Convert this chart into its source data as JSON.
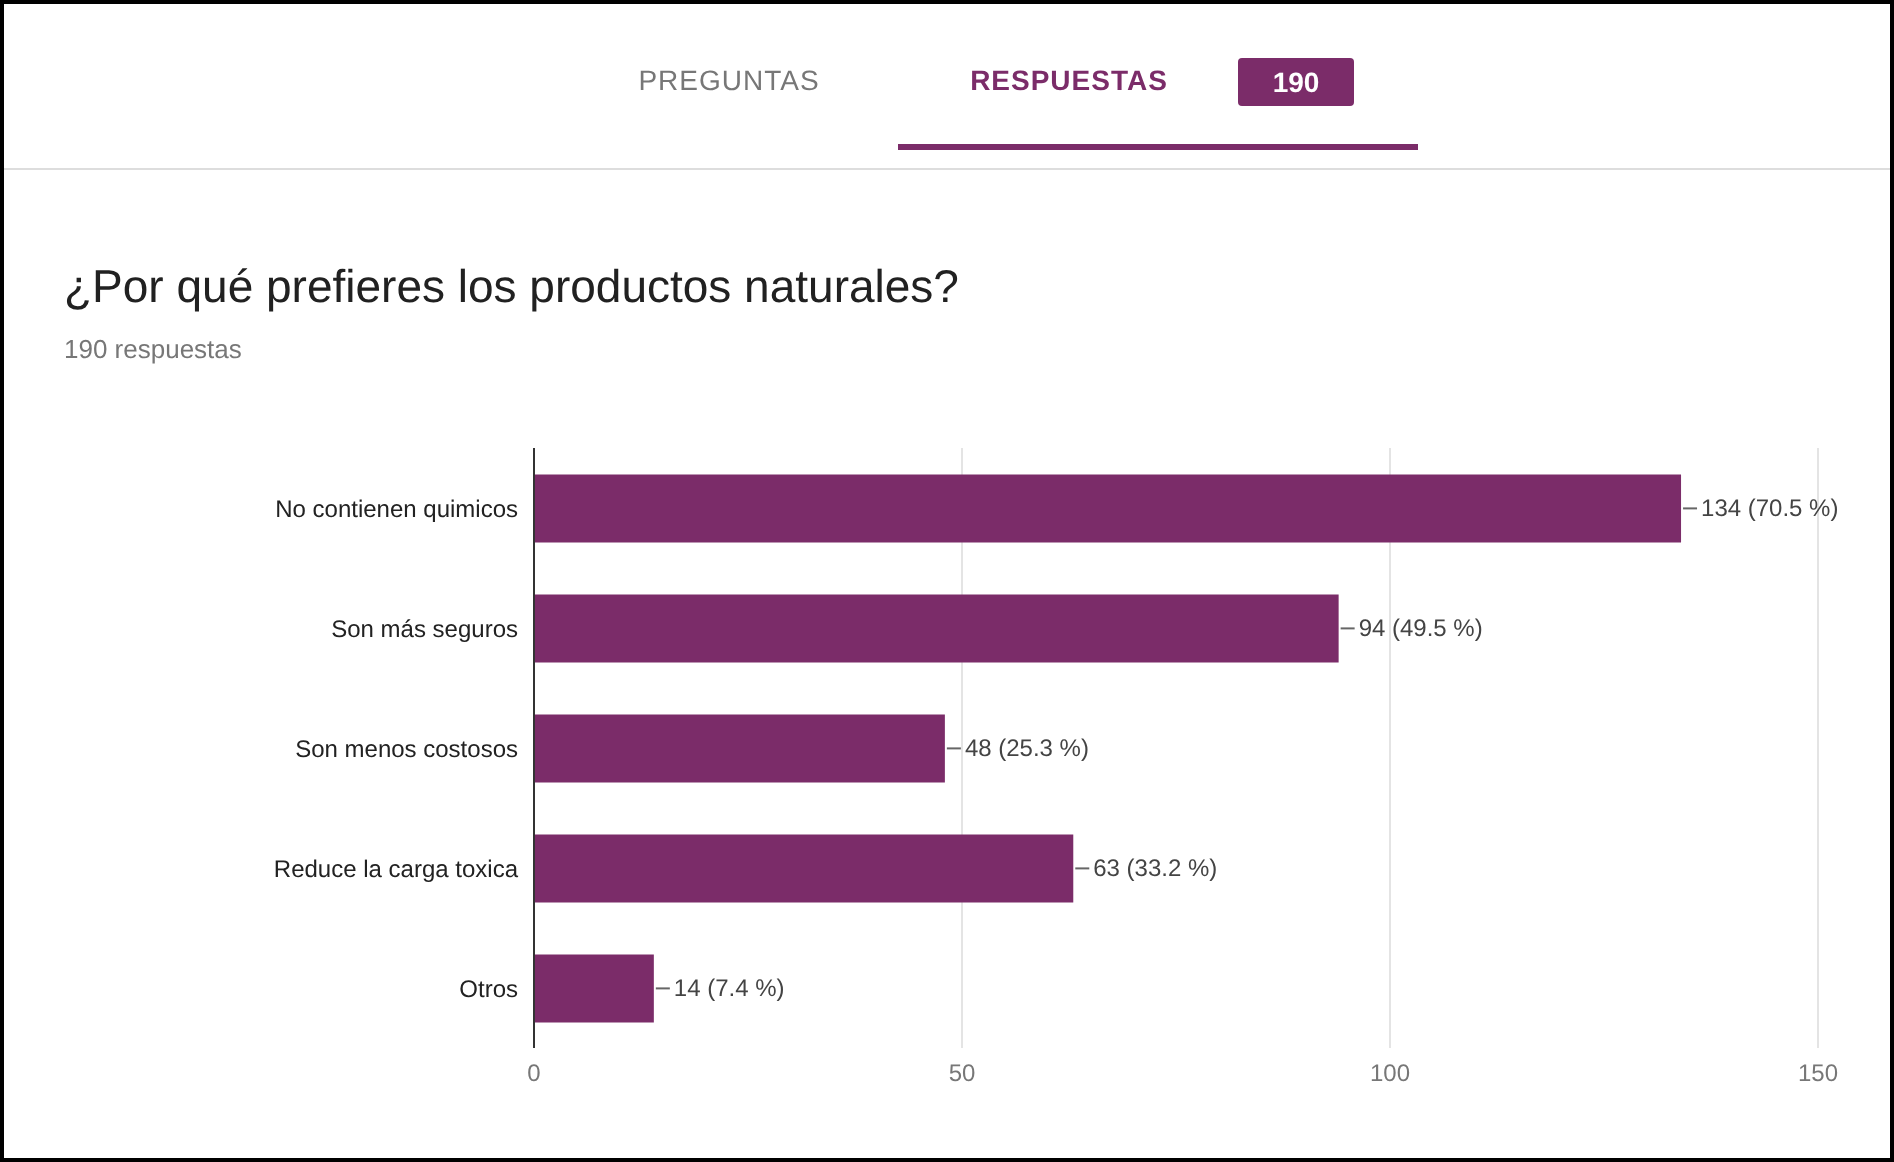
{
  "chart_data": {
    "type": "bar",
    "orientation": "horizontal",
    "title": "¿Por qué prefieres los productos naturales?",
    "subtitle": "190 respuestas",
    "annotations": [
      "PREGUNTAS",
      "RESPUESTAS",
      "190"
    ],
    "categories": [
      "No contienen quimicos",
      "Son más seguros",
      "Son menos costosos",
      "Reduce la carga toxica",
      "Otros"
    ],
    "values": [
      134,
      94,
      48,
      63,
      14
    ],
    "value_labels": [
      "134 (70.5 %)",
      "94 (49.5 %)",
      "48 (25.3 %)",
      "63 (33.2 %)",
      "14 (7.4 %)"
    ],
    "color": "#7b2c69",
    "xlim": [
      0,
      150
    ],
    "xticks": [
      0,
      50,
      100,
      150
    ],
    "grid": "x"
  }
}
